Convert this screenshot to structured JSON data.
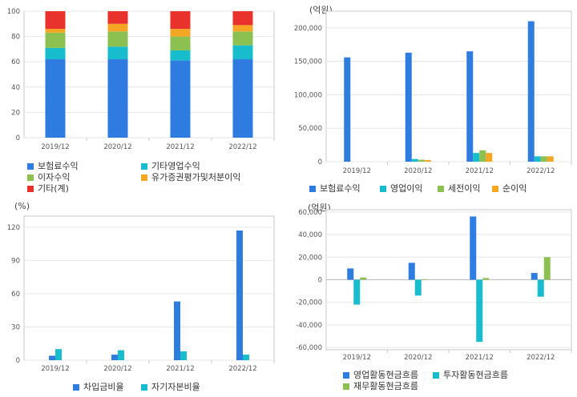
{
  "colors": {
    "blue": "#2f7ce0",
    "teal": "#17bccd",
    "green": "#8cc152",
    "orange": "#f5a623",
    "red": "#e8322b"
  },
  "chart_data": [
    {
      "type": "bar",
      "stacked": true,
      "categories": [
        "2019/12",
        "2020/12",
        "2021/12",
        "2022/12"
      ],
      "ylim": [
        0,
        100
      ],
      "yticks": [
        "0",
        "20",
        "40",
        "60",
        "80",
        "100"
      ],
      "unit": "",
      "series": [
        {
          "name": "보험료수익",
          "color": "blue",
          "values": [
            62,
            62,
            61,
            62
          ]
        },
        {
          "name": "기타영업수익",
          "color": "teal",
          "values": [
            9,
            10,
            8,
            11
          ]
        },
        {
          "name": "이자수익",
          "color": "green",
          "values": [
            12,
            12,
            11,
            11
          ]
        },
        {
          "name": "유가증권평가및처분이익",
          "color": "orange",
          "values": [
            3,
            6,
            6,
            5
          ]
        },
        {
          "name": "기타(계)",
          "color": "red",
          "values": [
            14,
            10,
            14,
            11
          ]
        }
      ]
    },
    {
      "type": "bar",
      "categories": [
        "2019/12",
        "2020/12",
        "2021/12",
        "2022/12"
      ],
      "ylim": [
        0,
        225000
      ],
      "yticks": [
        "0",
        "50,000",
        "100,000",
        "150,000",
        "200,000"
      ],
      "unit": "(억원)",
      "series": [
        {
          "name": "보험료수익",
          "color": "blue",
          "values": [
            156000,
            163000,
            165000,
            210000
          ]
        },
        {
          "name": "영업이익",
          "color": "teal",
          "values": [
            0,
            4000,
            13000,
            8000
          ]
        },
        {
          "name": "세전이익",
          "color": "green",
          "values": [
            0,
            3000,
            17000,
            8000
          ]
        },
        {
          "name": "순이익",
          "color": "orange",
          "values": [
            0,
            2500,
            13000,
            8000
          ]
        }
      ]
    },
    {
      "type": "bar",
      "categories": [
        "2019/12",
        "2020/12",
        "2021/12",
        "2022/12"
      ],
      "ylim": [
        0,
        130
      ],
      "yticks": [
        "0",
        "30",
        "60",
        "90",
        "120"
      ],
      "unit": "(%)",
      "series": [
        {
          "name": "차입금비율",
          "color": "blue",
          "values": [
            4,
            5,
            53,
            117
          ]
        },
        {
          "name": "자기자본비율",
          "color": "teal",
          "values": [
            10,
            9,
            8,
            5
          ]
        }
      ]
    },
    {
      "type": "bar",
      "categories": [
        "2019/12",
        "2020/12",
        "2021/12",
        "2022/12"
      ],
      "ylim": [
        -62000,
        62000
      ],
      "yticks": [
        "-60,000",
        "-40,000",
        "-20,000",
        "0",
        "20,000",
        "40,000",
        "60,000"
      ],
      "unit": "(억원)",
      "series": [
        {
          "name": "영업활동현금흐름",
          "color": "blue",
          "values": [
            10000,
            15000,
            56000,
            6000
          ]
        },
        {
          "name": "투자활동현금흐름",
          "color": "teal",
          "values": [
            -22000,
            -14000,
            -55000,
            -15000
          ]
        },
        {
          "name": "재무활동현금흐름",
          "color": "green",
          "values": [
            2000,
            500,
            1500,
            20000
          ]
        }
      ]
    }
  ]
}
